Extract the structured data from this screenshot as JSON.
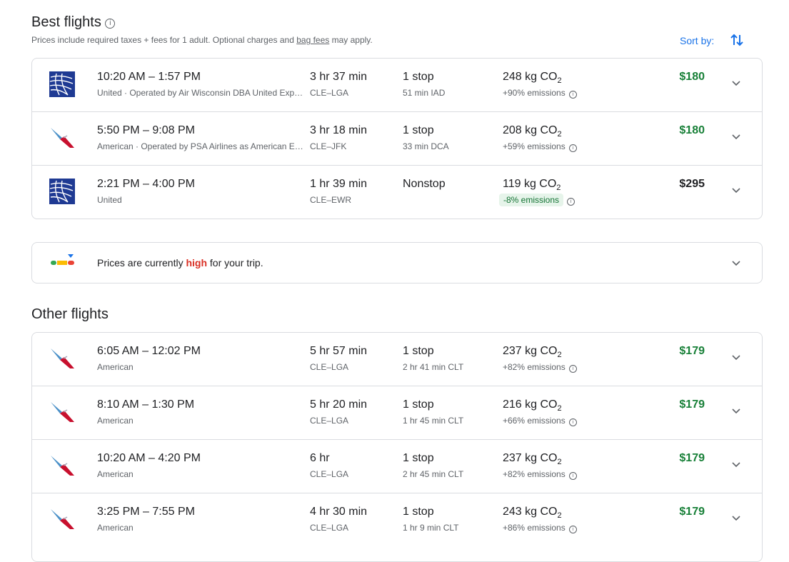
{
  "best": {
    "title": "Best flights",
    "subtitle_pre": "Prices include required taxes + fees for 1 adult. Optional charges and ",
    "subtitle_link": "bag fees",
    "subtitle_post": " may apply.",
    "sort_label": "Sort by:",
    "flights": [
      {
        "airline": "united",
        "times": "10:20 AM – 1:57 PM",
        "carrier": "United · Operated by Air Wisconsin DBA United Express",
        "duration": "3 hr 37 min",
        "route": "CLE–LGA",
        "stops": "1 stop",
        "layover": "51 min IAD",
        "co2": "248 kg CO",
        "co2_sub": "2",
        "emissions": "+90% emissions",
        "low": false,
        "price": "$180",
        "green": true
      },
      {
        "airline": "american",
        "times": "5:50 PM – 9:08 PM",
        "carrier": "American · Operated by PSA Airlines as American Eagle",
        "duration": "3 hr 18 min",
        "route": "CLE–JFK",
        "stops": "1 stop",
        "layover": "33 min DCA",
        "co2": "208 kg CO",
        "co2_sub": "2",
        "emissions": "+59% emissions",
        "low": false,
        "price": "$180",
        "green": true
      },
      {
        "airline": "united",
        "times": "2:21 PM – 4:00 PM",
        "carrier": "United",
        "duration": "1 hr 39 min",
        "route": "CLE–EWR",
        "stops": "Nonstop",
        "layover": "",
        "co2": "119 kg CO",
        "co2_sub": "2",
        "emissions": "-8% emissions",
        "low": true,
        "price": "$295",
        "green": false
      }
    ]
  },
  "insight": {
    "pre": "Prices are currently ",
    "level": "high",
    "post": " for your trip."
  },
  "other": {
    "title": "Other flights",
    "flights": [
      {
        "airline": "american",
        "times": "6:05 AM – 12:02 PM",
        "carrier": "American",
        "duration": "5 hr 57 min",
        "route": "CLE–LGA",
        "stops": "1 stop",
        "layover": "2 hr 41 min CLT",
        "co2": "237 kg CO",
        "co2_sub": "2",
        "emissions": "+82% emissions",
        "low": false,
        "price": "$179",
        "green": true
      },
      {
        "airline": "american",
        "times": "8:10 AM – 1:30 PM",
        "carrier": "American",
        "duration": "5 hr 20 min",
        "route": "CLE–LGA",
        "stops": "1 stop",
        "layover": "1 hr 45 min CLT",
        "co2": "216 kg CO",
        "co2_sub": "2",
        "emissions": "+66% emissions",
        "low": false,
        "price": "$179",
        "green": true
      },
      {
        "airline": "american",
        "times": "10:20 AM – 4:20 PM",
        "carrier": "American",
        "duration": "6 hr",
        "route": "CLE–LGA",
        "stops": "1 stop",
        "layover": "2 hr 45 min CLT",
        "co2": "237 kg CO",
        "co2_sub": "2",
        "emissions": "+82% emissions",
        "low": false,
        "price": "$179",
        "green": true
      },
      {
        "airline": "american",
        "times": "3:25 PM – 7:55 PM",
        "carrier": "American",
        "duration": "4 hr 30 min",
        "route": "CLE–LGA",
        "stops": "1 stop",
        "layover": "1 hr 9 min CLT",
        "co2": "243 kg CO",
        "co2_sub": "2",
        "emissions": "+86% emissions",
        "low": false,
        "price": "$179",
        "green": true
      }
    ]
  },
  "colors": {
    "accent": "#1a73e8",
    "price_green": "#188038",
    "high": "#d93025",
    "united": "#1f3a93"
  }
}
